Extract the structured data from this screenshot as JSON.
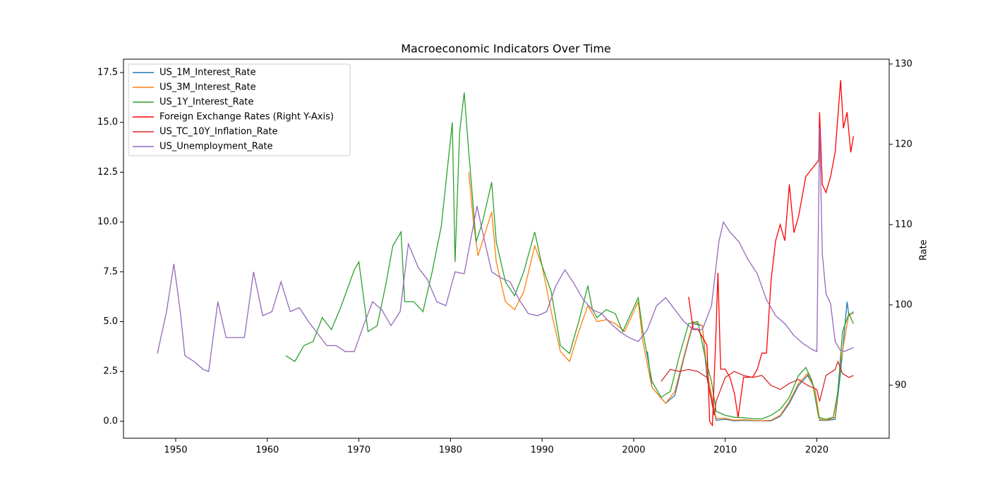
{
  "chart_data": {
    "type": "line",
    "title": "Macroeconomic Indicators Over Time",
    "y2label": "Rate",
    "xlim": [
      1944.3,
      2027.9
    ],
    "ylim": [
      -0.85,
      18.17
    ],
    "y2lim": [
      83.4,
      130.6
    ],
    "xticks": [
      1950,
      1960,
      1970,
      1980,
      1990,
      2000,
      2010,
      2020
    ],
    "yticks": [
      {
        "value": 0,
        "label": "0.0"
      },
      2.5,
      {
        "value": 5,
        "label": "5.0"
      },
      7.5,
      {
        "value": 10,
        "label": "10.0"
      },
      12.5,
      {
        "value": 15,
        "label": "15.0"
      },
      17.5
    ],
    "y2ticks": [
      90,
      100,
      110,
      120,
      130
    ],
    "legend": "upper left",
    "grid": false,
    "series": [
      {
        "name": "US_1M_Interest_Rate",
        "color": "#1f77b4",
        "axis": "y",
        "x": [
          2001.5,
          2002,
          2003.5,
          2004.5,
          2005.5,
          2006.5,
          2007.5,
          2008,
          2009,
          2010,
          2011,
          2012,
          2013,
          2014,
          2015,
          2016,
          2017,
          2018,
          2019,
          2019.8,
          2020.3,
          2021,
          2022,
          2022.6,
          2023.3,
          2023.5,
          2024
        ],
        "values": [
          3.5,
          1.7,
          0.9,
          1.3,
          3.2,
          4.9,
          4.8,
          2.2,
          0.05,
          0.1,
          0.02,
          0.05,
          0.03,
          0.02,
          0.02,
          0.25,
          0.9,
          1.8,
          2.3,
          1.6,
          0.05,
          0.04,
          0.1,
          2.5,
          6.0,
          5.3,
          5.5
        ]
      },
      {
        "name": "US_3M_Interest_Rate",
        "color": "#ff7f0e",
        "axis": "y",
        "x": [
          1982,
          1982.5,
          1983,
          1984.5,
          1985,
          1986,
          1987,
          1988,
          1989.2,
          1990,
          1991,
          1992,
          1993,
          1994,
          1995,
          1996,
          1997,
          1998,
          1999,
          2000.5,
          2001,
          2002,
          2003.5,
          2004.5,
          2005.5,
          2006.5,
          2007.5,
          2008,
          2009,
          2010,
          2011,
          2012,
          2013,
          2014,
          2015,
          2016,
          2017,
          2018,
          2019,
          2019.8,
          2020.3,
          2021,
          2022,
          2022.6,
          2023.5,
          2024
        ],
        "values": [
          12.5,
          10.0,
          8.3,
          10.5,
          8.0,
          6.0,
          5.6,
          6.5,
          8.8,
          7.8,
          5.5,
          3.5,
          3.0,
          4.5,
          5.8,
          5.0,
          5.1,
          4.9,
          4.5,
          6.0,
          4.0,
          1.7,
          0.9,
          1.5,
          3.3,
          5.0,
          4.8,
          2.5,
          0.15,
          0.15,
          0.05,
          0.08,
          0.05,
          0.03,
          0.05,
          0.3,
          1.0,
          1.9,
          2.4,
          1.6,
          0.1,
          0.05,
          0.2,
          3.0,
          5.4,
          5.4
        ]
      },
      {
        "name": "US_1Y_Interest_Rate",
        "color": "#2ca02c",
        "axis": "y",
        "x": [
          1962,
          1963,
          1964,
          1965,
          1966,
          1967,
          1968,
          1969.5,
          1970,
          1971,
          1972,
          1973,
          1973.7,
          1974.6,
          1975,
          1976,
          1977,
          1978,
          1979,
          1980.2,
          1980.5,
          1981,
          1981.5,
          1982,
          1982.8,
          1983.5,
          1984.5,
          1985,
          1986,
          1987,
          1988,
          1989.2,
          1990,
          1991,
          1992,
          1993,
          1994,
          1995,
          1995.5,
          1996,
          1997,
          1998,
          1998.8,
          1999.5,
          2000.5,
          2001,
          2002,
          2003,
          2004,
          2005,
          2006,
          2007,
          2007.9,
          2008.5,
          2009,
          2010,
          2011,
          2012,
          2013,
          2014,
          2015,
          2016,
          2017,
          2018,
          2018.8,
          2019.5,
          2020.2,
          2021,
          2021.8,
          2022.3,
          2022.8,
          2023.5,
          2024
        ],
        "values": [
          3.3,
          3.0,
          3.8,
          4.0,
          5.2,
          4.6,
          5.7,
          7.6,
          8.0,
          4.5,
          4.8,
          7.0,
          8.8,
          9.5,
          6.0,
          6.0,
          5.5,
          7.5,
          9.8,
          15.0,
          8.0,
          14.5,
          16.5,
          13.5,
          9.0,
          10.0,
          12.0,
          9.0,
          7.0,
          6.3,
          7.5,
          9.5,
          7.8,
          6.5,
          3.8,
          3.4,
          5.0,
          6.8,
          5.6,
          5.2,
          5.6,
          5.4,
          4.5,
          5.2,
          6.2,
          4.5,
          2.0,
          1.2,
          1.5,
          3.3,
          4.9,
          5.0,
          3.0,
          2.0,
          0.5,
          0.3,
          0.2,
          0.18,
          0.13,
          0.12,
          0.3,
          0.6,
          1.2,
          2.3,
          2.7,
          2.0,
          0.2,
          0.1,
          0.2,
          1.5,
          4.5,
          5.4,
          4.9
        ]
      },
      {
        "name": "Foreign Exchange Rates (Right Y-Axis)",
        "color": "#ff0000",
        "axis": "y2",
        "x": [
          2006,
          2006.5,
          2007,
          2007.5,
          2008,
          2008.3,
          2008.6,
          2009,
          2009.2,
          2009.5,
          2010,
          2010.5,
          2011,
          2011.4,
          2012,
          2013,
          2013.5,
          2014,
          2014.5,
          2015,
          2015.5,
          2016,
          2016.5,
          2017,
          2017.5,
          2018,
          2018.8,
          2019.5,
          2020.2,
          2020.3,
          2020.6,
          2021,
          2021.5,
          2022,
          2022.6,
          2022.9,
          2023.3,
          2023.7,
          2024
        ],
        "values": [
          101,
          97,
          97,
          96,
          95,
          85.5,
          85,
          97,
          104,
          92,
          92,
          91,
          89,
          86,
          91,
          91,
          92,
          94,
          94,
          103,
          108,
          110,
          108,
          115,
          109,
          111,
          116,
          117,
          118,
          124,
          115,
          114,
          116,
          119,
          128,
          122,
          124,
          119,
          121
        ]
      },
      {
        "name": "US_TC_10Y_Inflation_Rate",
        "color": "#d62728",
        "axis": "y",
        "x": [
          2003,
          2004,
          2005,
          2006,
          2007,
          2008,
          2008.8,
          2009,
          2010,
          2011,
          2012,
          2013,
          2014,
          2015,
          2016,
          2017,
          2018,
          2019,
          2020,
          2020.3,
          2021,
          2022,
          2022.3,
          2022.8,
          2023.5,
          2024
        ],
        "values": [
          2.0,
          2.6,
          2.5,
          2.6,
          2.5,
          2.2,
          0.3,
          1.0,
          2.2,
          2.5,
          2.3,
          2.2,
          2.3,
          1.8,
          1.6,
          1.9,
          2.1,
          1.8,
          1.6,
          1.0,
          2.3,
          2.6,
          3.0,
          2.4,
          2.2,
          2.3
        ]
      },
      {
        "name": "US_Unemployment_Rate",
        "color": "#9467bd",
        "axis": "y",
        "x": [
          1948,
          1949,
          1949.8,
          1950.5,
          1951,
          1952,
          1953,
          1953.6,
          1954.6,
          1955.5,
          1956.5,
          1957.5,
          1958.5,
          1959.5,
          1960.5,
          1961.5,
          1962.5,
          1963.5,
          1964.5,
          1965.5,
          1966.5,
          1967.5,
          1968.5,
          1969.5,
          1970.5,
          1971.5,
          1972.5,
          1973.5,
          1974.5,
          1975.4,
          1976.5,
          1977.5,
          1978.5,
          1979.5,
          1980.5,
          1981.5,
          1982.9,
          1983.5,
          1984.5,
          1985.5,
          1986.5,
          1987.5,
          1988.5,
          1989.5,
          1990.5,
          1991.5,
          1992.5,
          1993.5,
          1994.5,
          1995.5,
          1996.5,
          1997.5,
          1998.5,
          1999.5,
          2000.5,
          2001.5,
          2002.5,
          2003.5,
          2004.5,
          2005.5,
          2006.5,
          2007.5,
          2008.5,
          2009.3,
          2009.8,
          2010.5,
          2011.5,
          2012.5,
          2013.5,
          2014.5,
          2015.5,
          2016.5,
          2017.5,
          2018.5,
          2019.5,
          2020.0,
          2020.3,
          2020.6,
          2021,
          2021.5,
          2022,
          2022.5,
          2023,
          2023.5,
          2024
        ],
        "values": [
          3.4,
          5.5,
          7.9,
          5.5,
          3.3,
          3.0,
          2.6,
          2.5,
          6.0,
          4.2,
          4.2,
          4.2,
          7.5,
          5.3,
          5.5,
          7.0,
          5.5,
          5.7,
          5.0,
          4.4,
          3.8,
          3.8,
          3.5,
          3.5,
          4.8,
          6.0,
          5.6,
          4.8,
          5.5,
          8.9,
          7.7,
          7.1,
          6.0,
          5.8,
          7.5,
          7.4,
          10.8,
          9.5,
          7.5,
          7.2,
          7.0,
          6.1,
          5.4,
          5.3,
          5.5,
          6.8,
          7.6,
          6.9,
          6.1,
          5.6,
          5.4,
          4.9,
          4.5,
          4.2,
          4.0,
          4.6,
          5.8,
          6.2,
          5.6,
          5.0,
          4.6,
          4.6,
          5.8,
          9.0,
          10.0,
          9.5,
          9.0,
          8.1,
          7.4,
          6.1,
          5.3,
          4.9,
          4.3,
          3.9,
          3.6,
          3.5,
          14.7,
          8.4,
          6.4,
          5.9,
          4.0,
          3.6,
          3.5,
          3.6,
          3.7
        ]
      }
    ]
  }
}
